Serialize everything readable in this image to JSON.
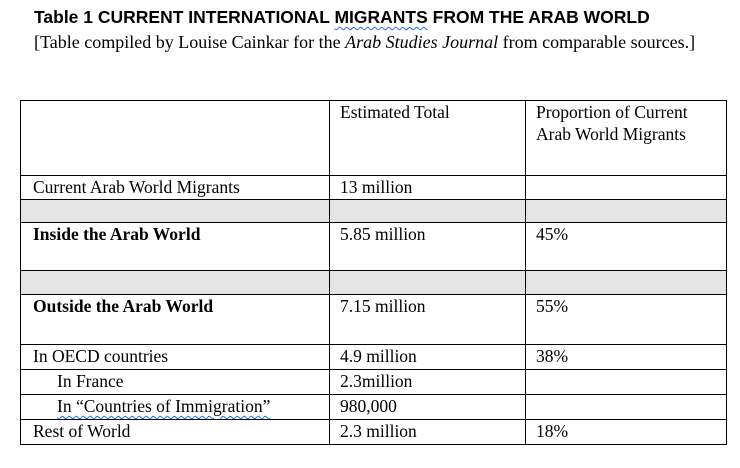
{
  "title": {
    "prefix": "Table 1 CURRENT INTERNATIONAL ",
    "flagged": "MIGRANTS",
    "suffix": " FROM THE ARAB WORLD"
  },
  "subtitle": {
    "before": "[Table compiled by Louise Cainkar for the ",
    "journal": "Arab Studies Journal",
    "after": " from comparable sources.]"
  },
  "table": {
    "header": {
      "col1": "",
      "col2": "Estimated Total",
      "col3": "Proportion of Current Arab World Migrants"
    },
    "rows": [
      {
        "label": "Current Arab World Migrants",
        "total": "13 million",
        "proportion": ""
      },
      {
        "label": "",
        "total": "",
        "proportion": ""
      },
      {
        "label": "Inside the Arab World",
        "total": "5.85 million",
        "proportion": "45%"
      },
      {
        "label": "",
        "total": "",
        "proportion": ""
      },
      {
        "label": "Outside the Arab World",
        "total": "7.15 million",
        "proportion": "55%"
      },
      {
        "label": "In OECD countries",
        "total": "4.9 million",
        "proportion": "38%"
      },
      {
        "label": "In France",
        "total": "2.3million",
        "proportion": ""
      },
      {
        "label": "In “Countries of Immigration”",
        "total": "980,000",
        "proportion": ""
      },
      {
        "label": "Rest of World",
        "total": "2.3 million",
        "proportion": "18%"
      }
    ]
  }
}
